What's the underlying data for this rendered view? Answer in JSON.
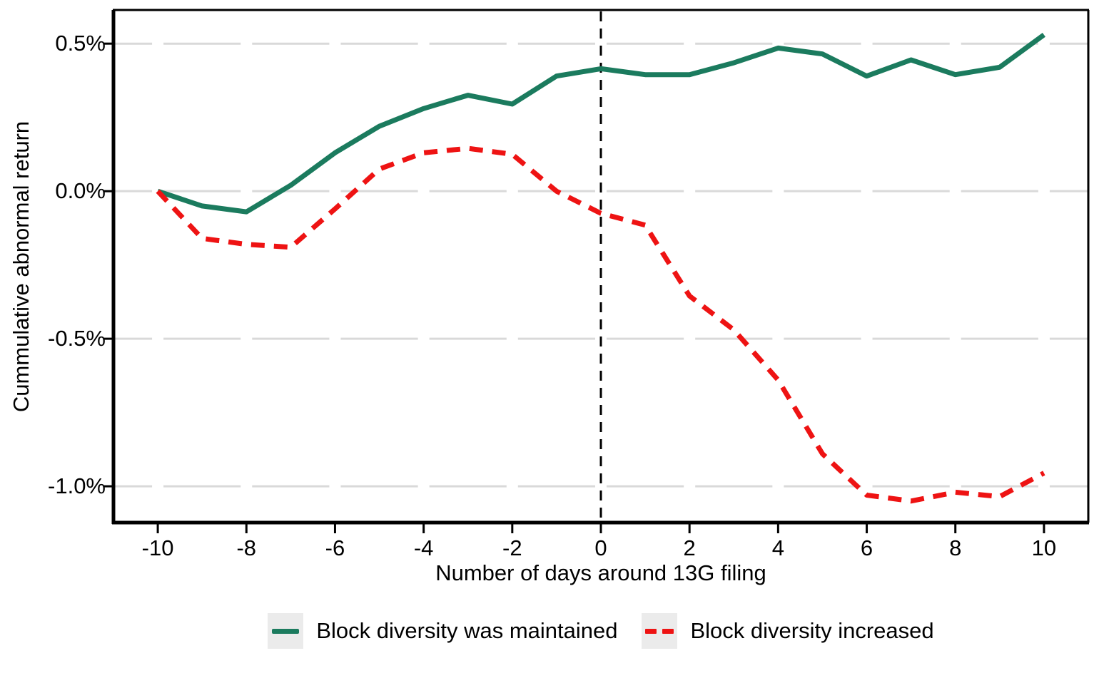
{
  "figure": {
    "x_axis_title": "Number of days around 13G filing",
    "y_axis_title": "Cummulative abnormal return",
    "y_ticks": [
      {
        "label": "0.5%",
        "value": 0.5
      },
      {
        "label": "0.0%",
        "value": 0.0
      },
      {
        "label": "-0.5%",
        "value": -0.5
      },
      {
        "label": "-1.0%",
        "value": -1.0
      }
    ],
    "x_ticks": [
      {
        "label": "-10",
        "value": -10
      },
      {
        "label": "-8",
        "value": -8
      },
      {
        "label": "-6",
        "value": -6
      },
      {
        "label": "-4",
        "value": -4
      },
      {
        "label": "-2",
        "value": -2
      },
      {
        "label": "0",
        "value": 0
      },
      {
        "label": "2",
        "value": 2
      },
      {
        "label": "4",
        "value": 4
      },
      {
        "label": "6",
        "value": 6
      },
      {
        "label": "8",
        "value": 8
      },
      {
        "label": "10",
        "value": 10
      }
    ]
  },
  "legend": {
    "items": [
      {
        "label": "Block diversity was maintained",
        "style": "solid",
        "color": "#1b7b5e"
      },
      {
        "label": "Block diversity increased",
        "style": "dashed",
        "color": "#ee1313"
      }
    ]
  },
  "colors": {
    "green_series": "#1b7b5e",
    "red_series": "#ee1313",
    "gridline": "#d9d9d9",
    "axis": "#000000",
    "reference_line": "#000000",
    "legend_key_bg": "#ebebeb"
  },
  "chart_data": {
    "type": "line",
    "title": "",
    "xlabel": "Number of days around 13G filing",
    "ylabel": "Cummulative abnormal return",
    "units": "percent",
    "xlim": [
      -11,
      11
    ],
    "ylim": [
      -1.123,
      0.614
    ],
    "grid": "horizontal, light gray, gaps at even-day ticks",
    "legend_position": "bottom",
    "vline_x": 0,
    "x": [
      -10,
      -9,
      -8,
      -7,
      -6,
      -5,
      -4,
      -3,
      -2,
      -1,
      0,
      1,
      2,
      3,
      4,
      5,
      6,
      7,
      8,
      9,
      10
    ],
    "series": [
      {
        "name": "Block diversity was maintained",
        "style": "solid",
        "color": "#1b7b5e",
        "values": [
          0.0,
          -0.05,
          -0.07,
          0.02,
          0.13,
          0.22,
          0.28,
          0.325,
          0.295,
          0.39,
          0.415,
          0.395,
          0.395,
          0.435,
          0.485,
          0.465,
          0.39,
          0.445,
          0.395,
          0.42,
          0.53
        ]
      },
      {
        "name": "Block diversity increased",
        "style": "dashed",
        "color": "#ee1313",
        "values": [
          0.0,
          -0.16,
          -0.18,
          -0.19,
          -0.06,
          0.075,
          0.13,
          0.145,
          0.125,
          0.0,
          -0.075,
          -0.115,
          -0.355,
          -0.47,
          -0.64,
          -0.89,
          -1.03,
          -1.05,
          -1.02,
          -1.035,
          -0.955
        ]
      }
    ]
  }
}
